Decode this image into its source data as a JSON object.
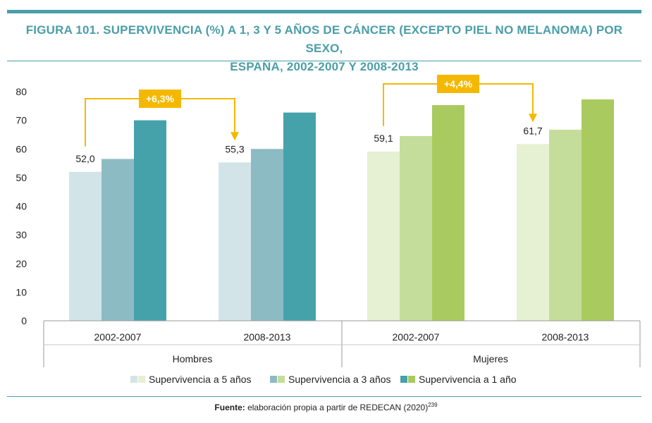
{
  "title_line1": "FIGURA 101. SUPERVIVENCIA (%) A 1, 3 Y 5 AÑOS DE CÁNCER (EXCEPTO PIEL NO MELANOMA) POR SEXO,",
  "title_line2": "ESPAÑA, 2002-2007 Y 2008-2013",
  "source": {
    "label": "Fuente:",
    "text": " elaboración propia a partir de REDECAN (2020)",
    "ref": "239"
  },
  "colors": {
    "accent": "#4a9ea8",
    "annotation": "#f5b800",
    "hombres": [
      "#d3e4e8",
      "#8dbbc3",
      "#45a2ab"
    ],
    "mujeres": [
      "#e6f0d2",
      "#c5dd9a",
      "#a9ca5f"
    ]
  },
  "chart_data": {
    "type": "bar",
    "ylim": [
      0,
      80
    ],
    "yticks": [
      0,
      10,
      20,
      30,
      40,
      50,
      60,
      70,
      80
    ],
    "groups": [
      {
        "name": "Hombres",
        "periods": [
          {
            "label": "2002-2007",
            "values": [
              52.0,
              56.5,
              70.0
            ]
          },
          {
            "label": "2008-2013",
            "values": [
              55.3,
              60.0,
              72.7
            ]
          }
        ],
        "annotation": "+6,3%"
      },
      {
        "name": "Mujeres",
        "periods": [
          {
            "label": "2002-2007",
            "values": [
              59.1,
              64.5,
              75.3
            ]
          },
          {
            "label": "2008-2013",
            "values": [
              61.7,
              66.7,
              77.3
            ]
          }
        ],
        "annotation": "+4,4%"
      }
    ],
    "series": [
      {
        "name": "Supervivencia a 5 años"
      },
      {
        "name": "Supervivencia a 3 años"
      },
      {
        "name": "Supervivencia a 1 año"
      }
    ],
    "data_labels": [
      {
        "group": 0,
        "period": 0,
        "text": "52,0"
      },
      {
        "group": 0,
        "period": 1,
        "text": "55,3"
      },
      {
        "group": 1,
        "period": 0,
        "text": "59,1"
      },
      {
        "group": 1,
        "period": 1,
        "text": "61,7"
      }
    ],
    "legend_position": "bottom"
  }
}
